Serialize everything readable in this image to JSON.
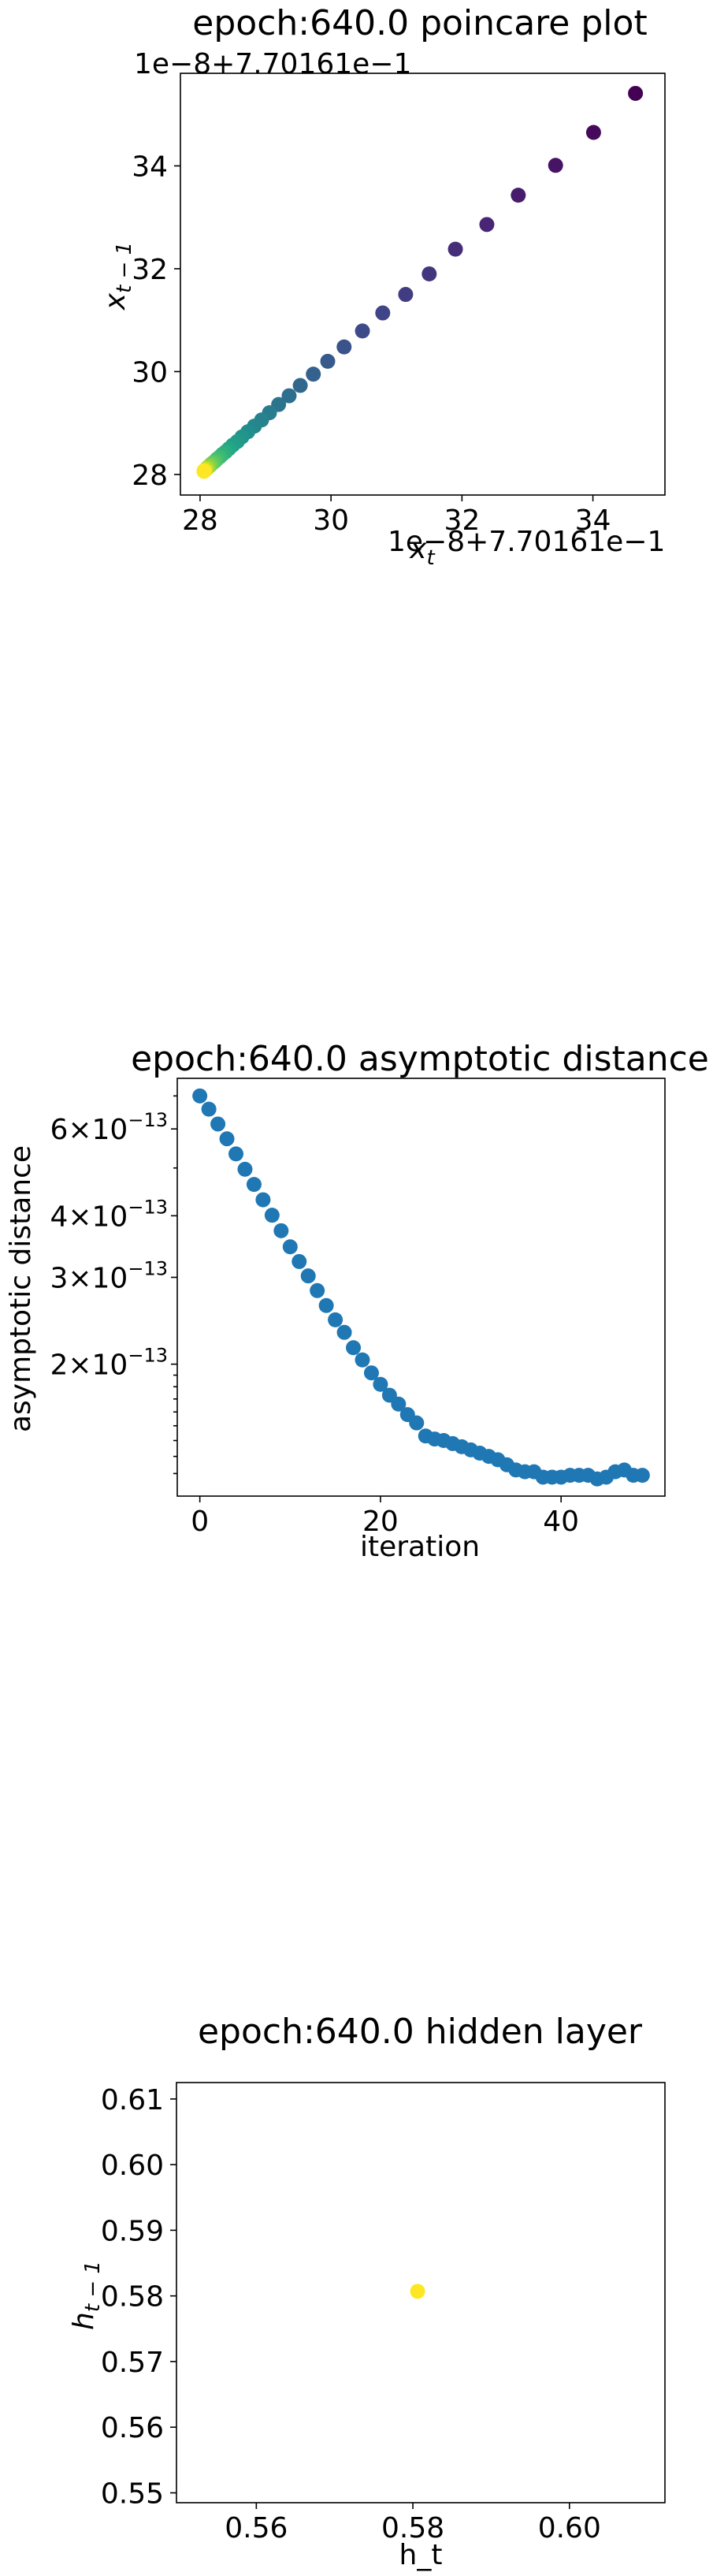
{
  "chart_data": [
    {
      "type": "scatter",
      "title": "epoch:640.0 poincare plot",
      "xlabel": "x_t",
      "ylabel": "x_{t-1}",
      "x_offset_label": "1e−8+7.70161e−1",
      "y_offset_label": "1e−8+7.70161e−1",
      "xlim": [
        27.7,
        35.1
      ],
      "ylim": [
        27.6,
        35.8
      ],
      "xticks": [
        {
          "v": 28,
          "label": "28"
        },
        {
          "v": 30,
          "label": "30"
        },
        {
          "v": 32,
          "label": "32"
        },
        {
          "v": 34,
          "label": "34"
        }
      ],
      "yticks": [
        {
          "v": 28,
          "label": "28"
        },
        {
          "v": 30,
          "label": "30"
        },
        {
          "v": 32,
          "label": "32"
        },
        {
          "v": 34,
          "label": "34"
        }
      ],
      "colormap": "viridis",
      "points": [
        {
          "x": 34.65,
          "y": 35.41
        },
        {
          "x": 34.01,
          "y": 34.65
        },
        {
          "x": 33.43,
          "y": 34.01
        },
        {
          "x": 32.86,
          "y": 33.43
        },
        {
          "x": 32.38,
          "y": 32.86
        },
        {
          "x": 31.9,
          "y": 32.38
        },
        {
          "x": 31.5,
          "y": 31.9
        },
        {
          "x": 31.14,
          "y": 31.5
        },
        {
          "x": 30.79,
          "y": 31.14
        },
        {
          "x": 30.48,
          "y": 30.79
        },
        {
          "x": 30.2,
          "y": 30.48
        },
        {
          "x": 29.95,
          "y": 30.2
        },
        {
          "x": 29.73,
          "y": 29.95
        },
        {
          "x": 29.53,
          "y": 29.73
        },
        {
          "x": 29.36,
          "y": 29.53
        },
        {
          "x": 29.2,
          "y": 29.36
        },
        {
          "x": 29.06,
          "y": 29.2
        },
        {
          "x": 28.94,
          "y": 29.06
        },
        {
          "x": 28.83,
          "y": 28.94
        },
        {
          "x": 28.73,
          "y": 28.83
        },
        {
          "x": 28.64,
          "y": 28.73
        },
        {
          "x": 28.57,
          "y": 28.64
        },
        {
          "x": 28.5,
          "y": 28.57
        },
        {
          "x": 28.44,
          "y": 28.5
        },
        {
          "x": 28.39,
          "y": 28.44
        },
        {
          "x": 28.34,
          "y": 28.39
        },
        {
          "x": 28.3,
          "y": 28.34
        },
        {
          "x": 28.26,
          "y": 28.3
        },
        {
          "x": 28.23,
          "y": 28.26
        },
        {
          "x": 28.2,
          "y": 28.23
        },
        {
          "x": 28.17,
          "y": 28.2
        },
        {
          "x": 28.15,
          "y": 28.17
        },
        {
          "x": 28.13,
          "y": 28.15
        },
        {
          "x": 28.11,
          "y": 28.13
        },
        {
          "x": 28.1,
          "y": 28.11
        },
        {
          "x": 28.09,
          "y": 28.1
        },
        {
          "x": 28.08,
          "y": 28.09
        },
        {
          "x": 28.07,
          "y": 28.08
        },
        {
          "x": 28.06,
          "y": 28.07
        },
        {
          "x": 28.06,
          "y": 28.06
        }
      ]
    },
    {
      "type": "scatter",
      "title": "epoch:640.0 asymptotic distance",
      "xlabel": "iteration",
      "ylabel": "asymptotic distance",
      "scale_y": "log",
      "xlim": [
        -2.5,
        51.5
      ],
      "ylim": [
        1.08e-13,
        7.6e-13
      ],
      "color": "#1f77b4",
      "xticks": [
        {
          "v": 0,
          "label": "0"
        },
        {
          "v": 20,
          "label": "20"
        },
        {
          "v": 40,
          "label": "40"
        }
      ],
      "yticks": [
        {
          "v": 6e-13,
          "mant": "6",
          "exp": "−13"
        },
        {
          "v": 4e-13,
          "mant": "4",
          "exp": "−13"
        },
        {
          "v": 3e-13,
          "mant": "3",
          "exp": "−13"
        },
        {
          "v": 2e-13,
          "mant": "2",
          "exp": "−13"
        }
      ],
      "x": [
        0,
        1,
        2,
        3,
        4,
        5,
        6,
        7,
        8,
        9,
        10,
        11,
        12,
        13,
        14,
        15,
        16,
        17,
        18,
        19,
        20,
        21,
        22,
        23,
        24,
        25,
        26,
        27,
        28,
        29,
        30,
        31,
        32,
        33,
        34,
        35,
        36,
        37,
        38,
        39,
        40,
        41,
        42,
        43,
        44,
        45,
        46,
        47,
        48,
        49
      ],
      "y": [
        7e-13,
        6.58e-13,
        6.14e-13,
        5.73e-13,
        5.34e-13,
        4.97e-13,
        4.63e-13,
        4.31e-13,
        4.01e-13,
        3.73e-13,
        3.46e-13,
        3.23e-13,
        3.02e-13,
        2.82e-13,
        2.63e-13,
        2.46e-13,
        2.32e-13,
        2.16e-13,
        2.04e-13,
        1.92e-13,
        1.82e-13,
        1.73e-13,
        1.66e-13,
        1.58e-13,
        1.52e-13,
        1.43e-13,
        1.41e-13,
        1.4e-13,
        1.38e-13,
        1.36e-13,
        1.34e-13,
        1.32e-13,
        1.3e-13,
        1.28e-13,
        1.25e-13,
        1.22e-13,
        1.21e-13,
        1.21e-13,
        1.18e-13,
        1.18e-13,
        1.18e-13,
        1.19e-13,
        1.19e-13,
        1.19e-13,
        1.17e-13,
        1.18e-13,
        1.21e-13,
        1.22e-13,
        1.19e-13,
        1.19e-13
      ]
    },
    {
      "type": "scatter",
      "title": "epoch:640.0 hidden layer",
      "xlabel": "h_t",
      "ylabel": "h_{t-1}",
      "xlim": [
        0.5498,
        0.6122
      ],
      "ylim": [
        0.5485,
        0.6125
      ],
      "color": "#fde725",
      "xticks": [
        {
          "v": 0.56,
          "label": "0.56"
        },
        {
          "v": 0.58,
          "label": "0.58"
        },
        {
          "v": 0.6,
          "label": "0.60"
        }
      ],
      "yticks": [
        {
          "v": 0.55,
          "label": "0.55"
        },
        {
          "v": 0.56,
          "label": "0.56"
        },
        {
          "v": 0.57,
          "label": "0.57"
        },
        {
          "v": 0.58,
          "label": "0.58"
        },
        {
          "v": 0.59,
          "label": "0.59"
        },
        {
          "v": 0.6,
          "label": "0.60"
        },
        {
          "v": 0.61,
          "label": "0.61"
        }
      ],
      "points": [
        {
          "x": 0.5806,
          "y": 0.5807
        }
      ]
    }
  ]
}
